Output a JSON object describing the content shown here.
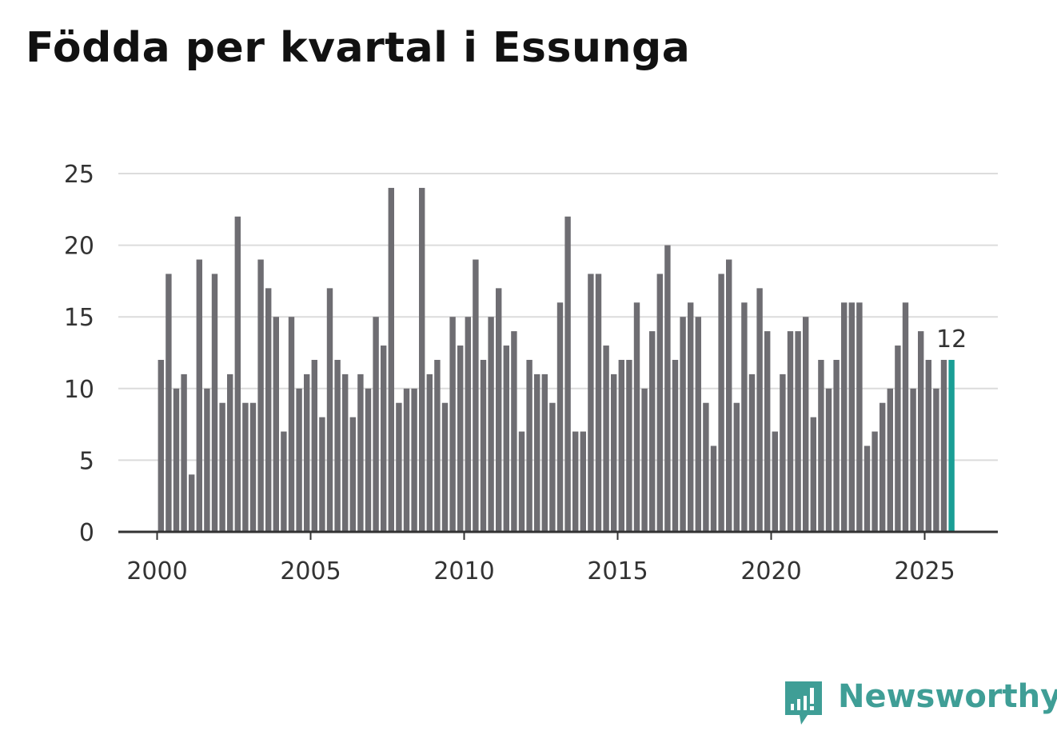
{
  "title": "Födda per kvartal i Essunga",
  "brand": {
    "name": "Newsworthy",
    "color": "#3f9e96"
  },
  "colors": {
    "bar": "#6e6d72",
    "highlight": "#1a9e95",
    "grid": "#dcdcdc",
    "axis": "#333333"
  },
  "chart_data": {
    "type": "bar",
    "title": "Födda per kvartal i Essunga",
    "xlabel": "",
    "ylabel": "",
    "ylim": [
      0,
      25
    ],
    "yticks": [
      0,
      5,
      10,
      15,
      20,
      25
    ],
    "xticks": [
      "2000",
      "2005",
      "2010",
      "2015",
      "2020",
      "2025"
    ],
    "start": "2000 Q1",
    "frequency": "quarterly",
    "values": [
      12,
      18,
      10,
      11,
      4,
      19,
      10,
      18,
      9,
      11,
      22,
      9,
      9,
      19,
      17,
      15,
      7,
      15,
      10,
      11,
      12,
      8,
      17,
      12,
      11,
      8,
      11,
      10,
      15,
      13,
      24,
      9,
      10,
      10,
      24,
      11,
      12,
      9,
      15,
      13,
      15,
      19,
      12,
      15,
      17,
      13,
      14,
      7,
      12,
      11,
      11,
      9,
      16,
      22,
      7,
      7,
      18,
      18,
      13,
      11,
      12,
      12,
      16,
      10,
      14,
      18,
      20,
      12,
      15,
      16,
      15,
      9,
      6,
      18,
      19,
      9,
      16,
      11,
      17,
      14,
      7,
      11,
      14,
      14,
      15,
      8,
      12,
      10,
      12,
      16,
      16,
      16,
      6,
      7,
      9,
      10,
      13,
      16,
      10,
      14,
      12,
      10,
      12,
      12
    ],
    "highlight_last": true,
    "annotation": "12"
  }
}
